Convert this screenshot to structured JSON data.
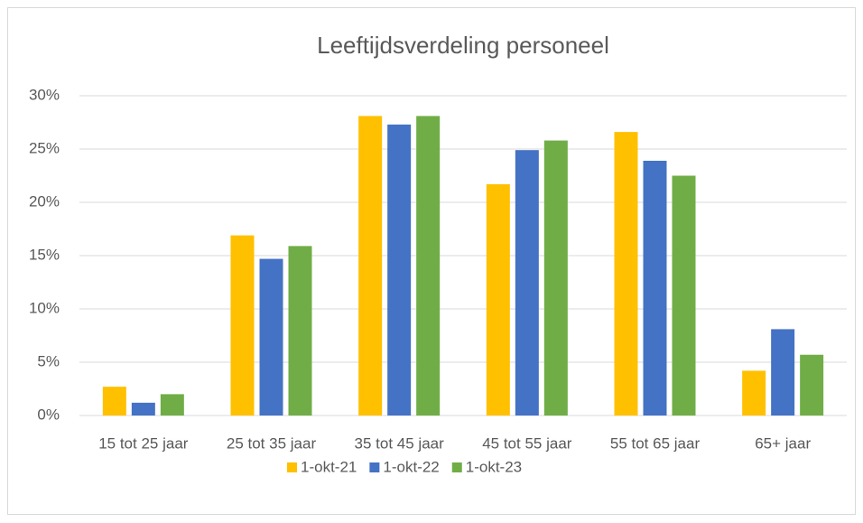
{
  "chart_data": {
    "type": "bar",
    "title": "Leeftijdsverdeling personeel",
    "categories": [
      "15 tot 25 jaar",
      "25 tot 35 jaar",
      "35 tot 45 jaar",
      "45 tot 55 jaar",
      "55 tot 65 jaar",
      "65+ jaar"
    ],
    "series": [
      {
        "name": "1-okt-21",
        "color": "#FFC000",
        "values": [
          2.7,
          16.9,
          28.1,
          21.7,
          26.6,
          4.2
        ]
      },
      {
        "name": "1-okt-22",
        "color": "#4472C4",
        "values": [
          1.2,
          14.7,
          27.3,
          24.9,
          23.9,
          8.1
        ]
      },
      {
        "name": "1-okt-23",
        "color": "#70AD47",
        "values": [
          2.0,
          15.9,
          28.1,
          25.8,
          22.5,
          5.7
        ]
      }
    ],
    "ylim": [
      0,
      30
    ],
    "yticks": [
      {
        "value": 0,
        "label": "0%"
      },
      {
        "value": 5,
        "label": "5%"
      },
      {
        "value": 10,
        "label": "10%"
      },
      {
        "value": 15,
        "label": "15%"
      },
      {
        "value": 20,
        "label": "20%"
      },
      {
        "value": 25,
        "label": "25%"
      },
      {
        "value": 30,
        "label": "30%"
      }
    ],
    "grid": true,
    "legend": "bottom"
  }
}
